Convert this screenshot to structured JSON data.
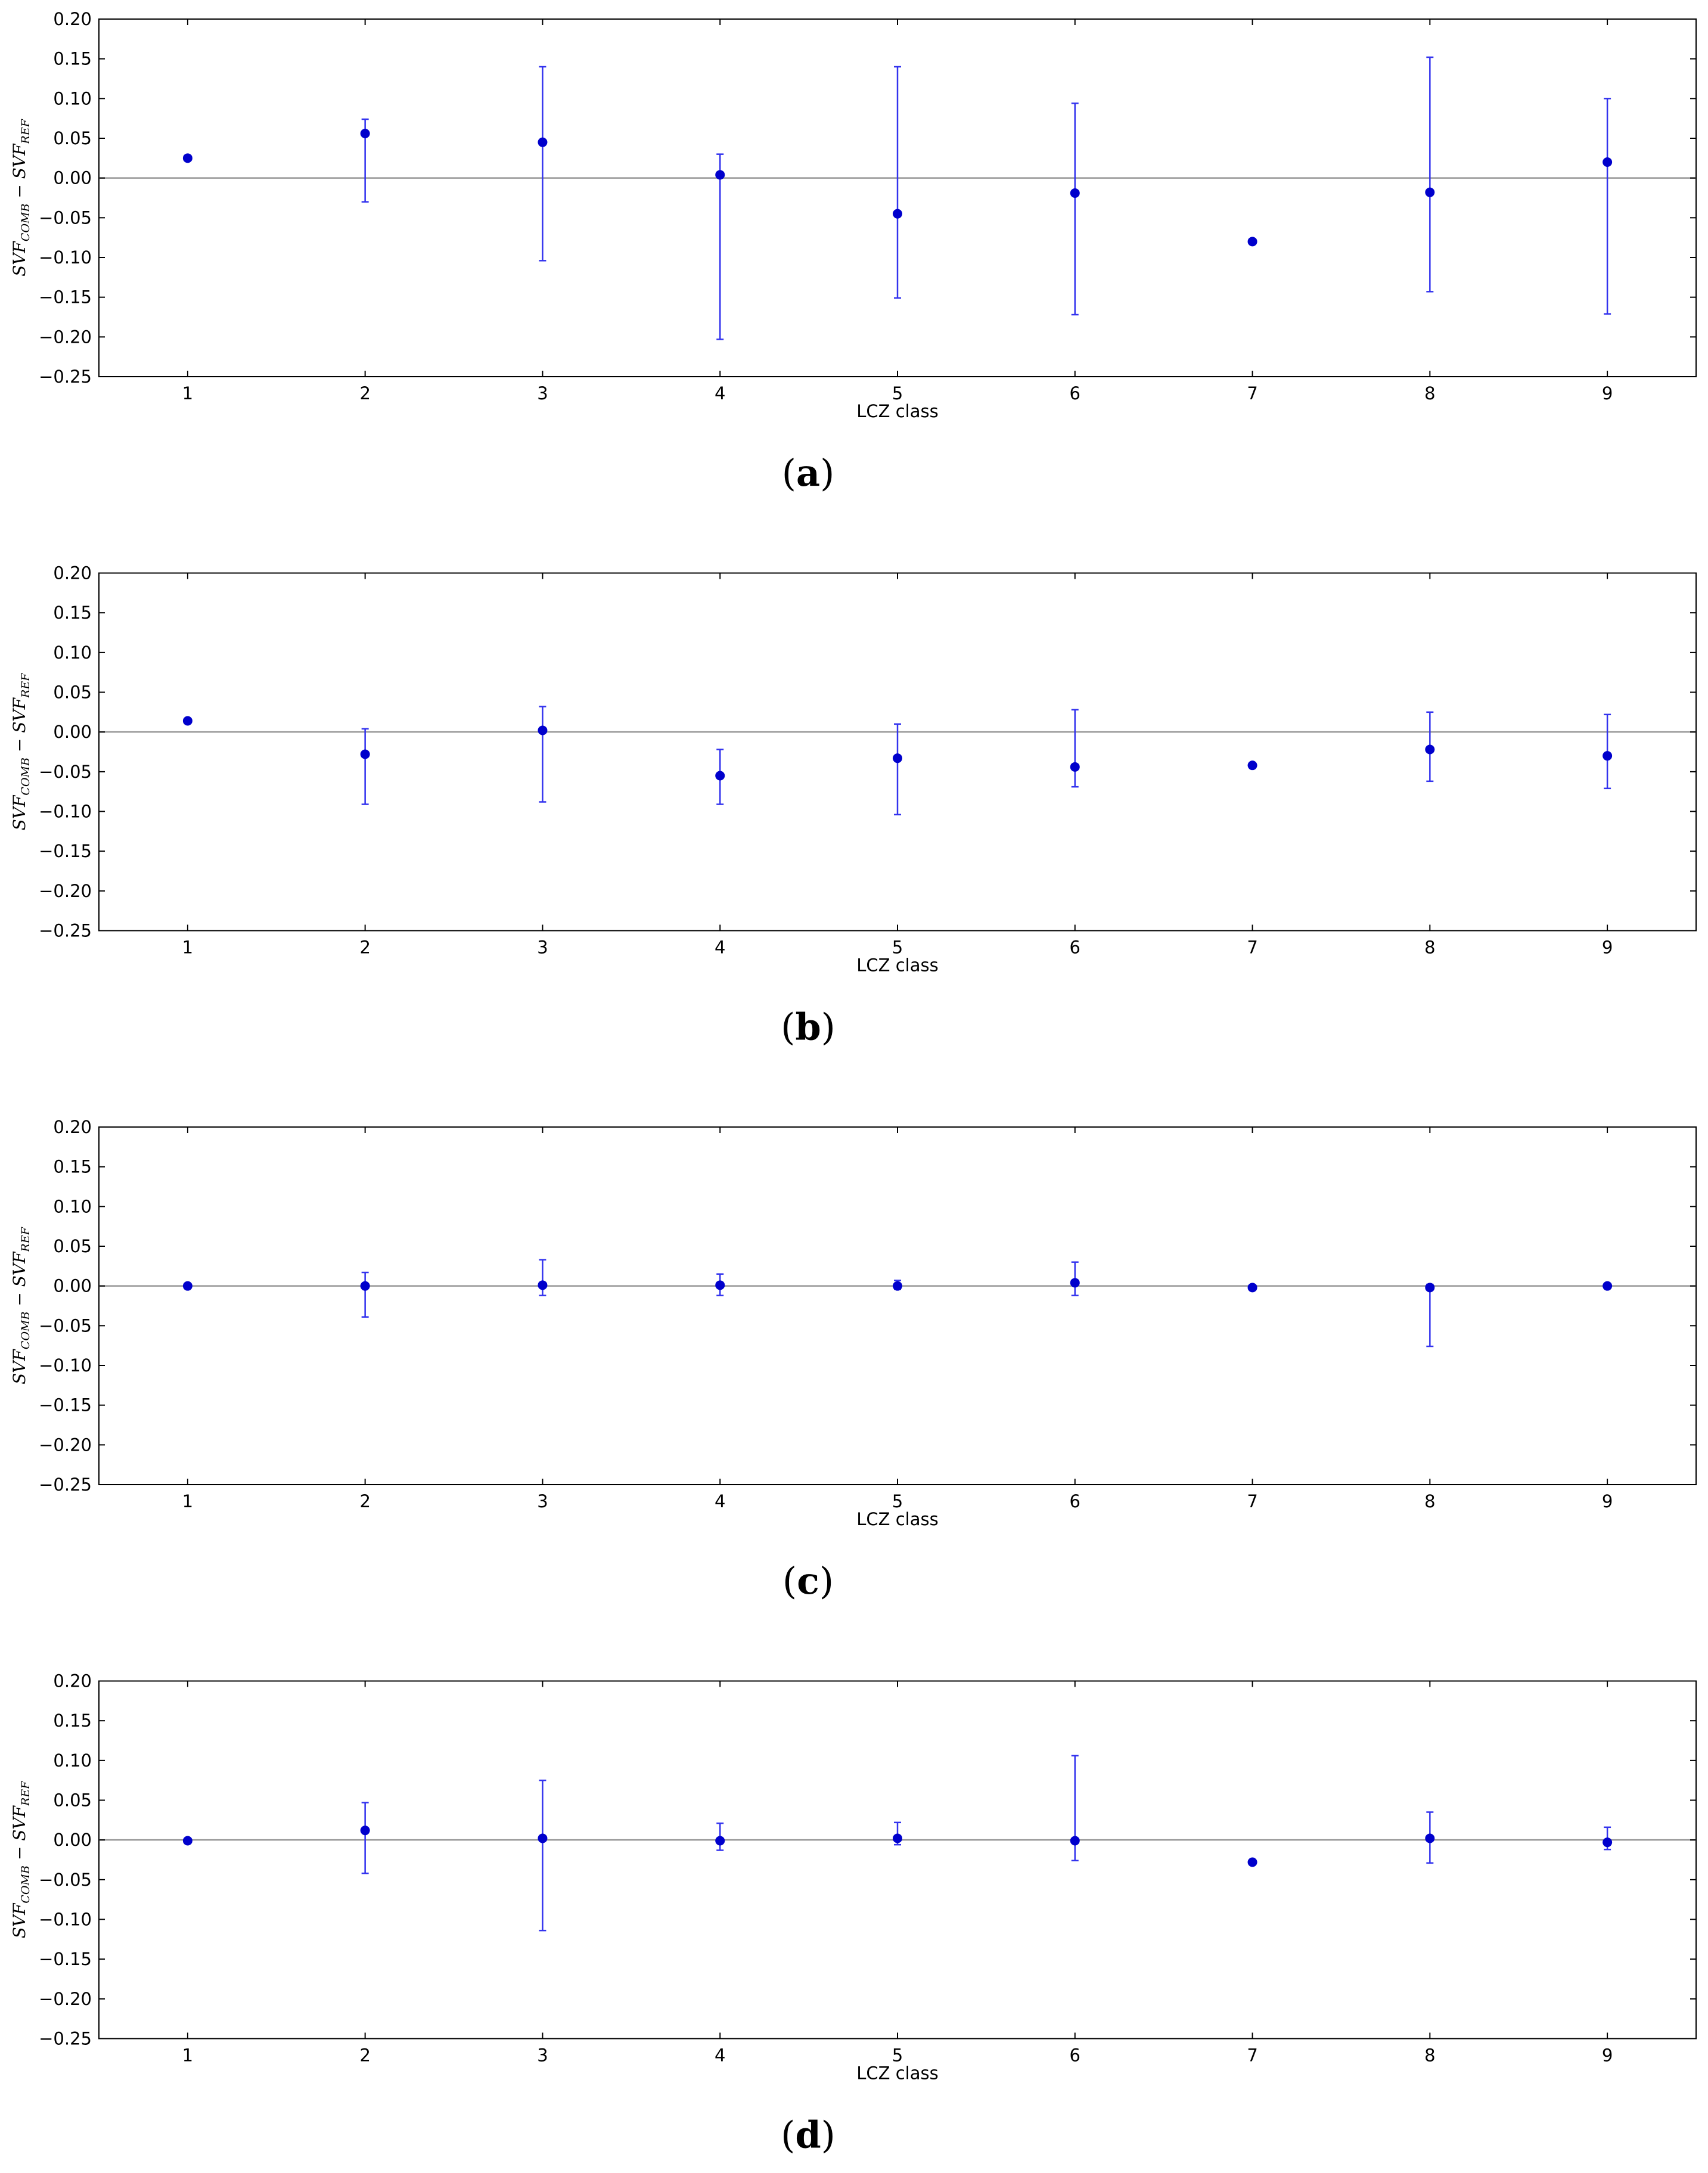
{
  "chart_data": [
    {
      "type": "scatter",
      "panel_label": "(a)",
      "panel_letter": "a",
      "xlabel": "LCZ class",
      "ylabel": "SVF_COMB − SVF_REF",
      "ylabel_parts": {
        "main1": "SVF",
        "sub1": "COMB",
        "minus": " − ",
        "main2": "SVF",
        "sub2": "REF"
      },
      "xlim": [
        0.5,
        9.5
      ],
      "ylim": [
        -0.25,
        0.2
      ],
      "xticks": [
        1,
        2,
        3,
        4,
        5,
        6,
        7,
        8,
        9
      ],
      "yticks": [
        -0.25,
        -0.2,
        -0.15,
        -0.1,
        -0.05,
        0.0,
        0.05,
        0.1,
        0.15,
        0.2
      ],
      "ytick_labels": [
        "−0.25",
        "−0.20",
        "−0.15",
        "−0.10",
        "−0.05",
        "0.00",
        "0.05",
        "0.10",
        "0.15",
        "0.20"
      ],
      "grid": false,
      "reference_line": 0.0,
      "points": [
        {
          "x": 1,
          "y": 0.025,
          "err_low": null,
          "err_high": null
        },
        {
          "x": 2,
          "y": 0.056,
          "err_low": -0.03,
          "err_high": 0.074
        },
        {
          "x": 3,
          "y": 0.045,
          "err_low": -0.104,
          "err_high": 0.14
        },
        {
          "x": 4,
          "y": 0.004,
          "err_low": -0.203,
          "err_high": 0.03
        },
        {
          "x": 5,
          "y": -0.045,
          "err_low": -0.151,
          "err_high": 0.14
        },
        {
          "x": 6,
          "y": -0.019,
          "err_low": -0.172,
          "err_high": 0.094
        },
        {
          "x": 7,
          "y": -0.08,
          "err_low": null,
          "err_high": null
        },
        {
          "x": 8,
          "y": -0.018,
          "err_low": -0.143,
          "err_high": 0.152
        },
        {
          "x": 9,
          "y": 0.02,
          "err_low": -0.171,
          "err_high": 0.1
        }
      ],
      "colors": {
        "points": "#0000cc",
        "errorbars": "#3333ee",
        "reference_line": "#999999"
      }
    },
    {
      "type": "scatter",
      "panel_label": "(b)",
      "panel_letter": "b",
      "xlabel": "LCZ class",
      "ylabel": "SVF_COMB − SVF_REF",
      "ylabel_parts": {
        "main1": "SVF",
        "sub1": "COMB",
        "minus": " − ",
        "main2": "SVF",
        "sub2": "REF"
      },
      "xlim": [
        0.5,
        9.5
      ],
      "ylim": [
        -0.25,
        0.2
      ],
      "xticks": [
        1,
        2,
        3,
        4,
        5,
        6,
        7,
        8,
        9
      ],
      "yticks": [
        -0.25,
        -0.2,
        -0.15,
        -0.1,
        -0.05,
        0.0,
        0.05,
        0.1,
        0.15,
        0.2
      ],
      "ytick_labels": [
        "−0.25",
        "−0.20",
        "−0.15",
        "−0.10",
        "−0.05",
        "0.00",
        "0.05",
        "0.10",
        "0.15",
        "0.20"
      ],
      "grid": false,
      "reference_line": 0.0,
      "points": [
        {
          "x": 1,
          "y": 0.014,
          "err_low": null,
          "err_high": null
        },
        {
          "x": 2,
          "y": -0.028,
          "err_low": -0.091,
          "err_high": 0.004
        },
        {
          "x": 3,
          "y": 0.002,
          "err_low": -0.088,
          "err_high": 0.032
        },
        {
          "x": 4,
          "y": -0.055,
          "err_low": -0.091,
          "err_high": -0.022
        },
        {
          "x": 5,
          "y": -0.033,
          "err_low": -0.104,
          "err_high": 0.01
        },
        {
          "x": 6,
          "y": -0.044,
          "err_low": -0.069,
          "err_high": 0.028
        },
        {
          "x": 7,
          "y": -0.042,
          "err_low": null,
          "err_high": null
        },
        {
          "x": 8,
          "y": -0.022,
          "err_low": -0.062,
          "err_high": 0.025
        },
        {
          "x": 9,
          "y": -0.03,
          "err_low": -0.071,
          "err_high": 0.022
        }
      ],
      "colors": {
        "points": "#0000cc",
        "errorbars": "#3333ee",
        "reference_line": "#999999"
      }
    },
    {
      "type": "scatter",
      "panel_label": "(c)",
      "panel_letter": "c",
      "xlabel": "LCZ class",
      "ylabel": "SVF_COMB − SVF_REF",
      "ylabel_parts": {
        "main1": "SVF",
        "sub1": "COMB",
        "minus": " − ",
        "main2": "SVF",
        "sub2": "REF"
      },
      "xlim": [
        0.5,
        9.5
      ],
      "ylim": [
        -0.25,
        0.2
      ],
      "xticks": [
        1,
        2,
        3,
        4,
        5,
        6,
        7,
        8,
        9
      ],
      "yticks": [
        -0.25,
        -0.2,
        -0.15,
        -0.1,
        -0.05,
        0.0,
        0.05,
        0.1,
        0.15,
        0.2
      ],
      "ytick_labels": [
        "−0.25",
        "−0.20",
        "−0.15",
        "−0.10",
        "−0.05",
        "0.00",
        "0.05",
        "0.10",
        "0.15",
        "0.20"
      ],
      "grid": false,
      "reference_line": 0.0,
      "points": [
        {
          "x": 1,
          "y": 0.0,
          "err_low": null,
          "err_high": null
        },
        {
          "x": 2,
          "y": 0.0,
          "err_low": -0.039,
          "err_high": 0.017
        },
        {
          "x": 3,
          "y": 0.001,
          "err_low": -0.012,
          "err_high": 0.033
        },
        {
          "x": 4,
          "y": 0.001,
          "err_low": -0.012,
          "err_high": 0.015
        },
        {
          "x": 5,
          "y": 0.0,
          "err_low": -0.004,
          "err_high": 0.007
        },
        {
          "x": 6,
          "y": 0.004,
          "err_low": -0.012,
          "err_high": 0.03
        },
        {
          "x": 7,
          "y": -0.002,
          "err_low": null,
          "err_high": null
        },
        {
          "x": 8,
          "y": -0.002,
          "err_low": -0.076,
          "err_high": 0.002
        },
        {
          "x": 9,
          "y": 0.0,
          "err_low": null,
          "err_high": null
        }
      ],
      "colors": {
        "points": "#0000cc",
        "errorbars": "#3333ee",
        "reference_line": "#999999"
      }
    },
    {
      "type": "scatter",
      "panel_label": "(d)",
      "panel_letter": "d",
      "xlabel": "LCZ class",
      "ylabel": "SVF_COMB − SVF_REF",
      "ylabel_parts": {
        "main1": "SVF",
        "sub1": "COMB",
        "minus": " − ",
        "main2": "SVF",
        "sub2": "REF"
      },
      "xlim": [
        0.5,
        9.5
      ],
      "ylim": [
        -0.25,
        0.2
      ],
      "xticks": [
        1,
        2,
        3,
        4,
        5,
        6,
        7,
        8,
        9
      ],
      "yticks": [
        -0.25,
        -0.2,
        -0.15,
        -0.1,
        -0.05,
        0.0,
        0.05,
        0.1,
        0.15,
        0.2
      ],
      "ytick_labels": [
        "−0.25",
        "−0.20",
        "−0.15",
        "−0.10",
        "−0.05",
        "0.00",
        "0.05",
        "0.10",
        "0.15",
        "0.20"
      ],
      "grid": false,
      "reference_line": 0.0,
      "points": [
        {
          "x": 1,
          "y": -0.001,
          "err_low": null,
          "err_high": null
        },
        {
          "x": 2,
          "y": 0.012,
          "err_low": -0.042,
          "err_high": 0.047
        },
        {
          "x": 3,
          "y": 0.002,
          "err_low": -0.114,
          "err_high": 0.075
        },
        {
          "x": 4,
          "y": -0.001,
          "err_low": -0.013,
          "err_high": 0.021
        },
        {
          "x": 5,
          "y": 0.002,
          "err_low": -0.006,
          "err_high": 0.022
        },
        {
          "x": 6,
          "y": -0.001,
          "err_low": -0.026,
          "err_high": 0.106
        },
        {
          "x": 7,
          "y": -0.028,
          "err_low": null,
          "err_high": null
        },
        {
          "x": 8,
          "y": 0.002,
          "err_low": -0.029,
          "err_high": 0.035
        },
        {
          "x": 9,
          "y": -0.003,
          "err_low": -0.012,
          "err_high": 0.016
        }
      ],
      "colors": {
        "points": "#0000cc",
        "errorbars": "#3333ee",
        "reference_line": "#999999"
      }
    }
  ]
}
